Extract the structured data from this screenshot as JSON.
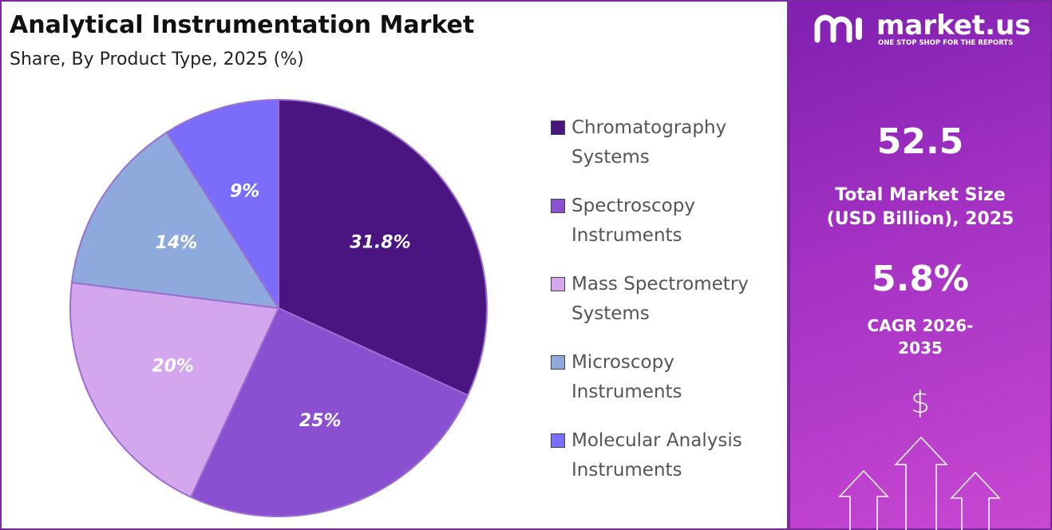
{
  "chart_data": {
    "type": "pie",
    "title": "Analytical Instrumentation Market",
    "subtitle": "Share, By Product Type, 2025 (%)",
    "categories": [
      "Chromatography Systems",
      "Spectroscopy Instruments",
      "Mass Spectrometry Systems",
      "Microscopy Instruments",
      "Molecular Analysis Instruments"
    ],
    "values": [
      31.8,
      25,
      20,
      14,
      9
    ],
    "value_labels": [
      "31.8%",
      "25%",
      "20%",
      "14%",
      "9%"
    ],
    "colors": [
      "#4a1581",
      "#8b4fd2",
      "#d3a6ee",
      "#8ea9dc",
      "#7a6dfb"
    ]
  },
  "panel": {
    "brand": "market.us",
    "tagline": "ONE STOP SHOP FOR THE REPORTS",
    "market_size": "52.5",
    "market_size_label": "Total Market Size (USD Billion), 2025",
    "cagr": "5.8%",
    "cagr_label": "CAGR 2026-2035",
    "icon": "$"
  }
}
